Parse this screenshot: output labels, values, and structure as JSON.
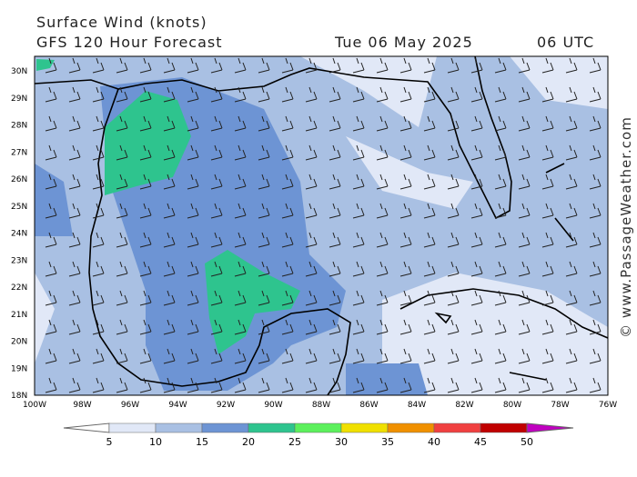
{
  "header": {
    "title": "Surface Wind (knots)",
    "model": "GFS 120 Hour Forecast",
    "date": "Tue 06 May 2025",
    "time": "06 UTC"
  },
  "map": {
    "lat_labels": [
      "30N",
      "29N",
      "28N",
      "27N",
      "26N",
      "25N",
      "24N",
      "23N",
      "22N",
      "21N",
      "20N",
      "19N",
      "18N"
    ],
    "lon_labels": [
      "100W",
      "98W",
      "96W",
      "94W",
      "92W",
      "90W",
      "88W",
      "86W",
      "84W",
      "82W",
      "80W",
      "78W",
      "76W"
    ]
  },
  "legend": {
    "labels": [
      "5",
      "10",
      "15",
      "20",
      "25",
      "30",
      "35",
      "40",
      "45",
      "50"
    ],
    "colors": [
      "#ffffff",
      "#e1e8f7",
      "#a9c0e3",
      "#6d94d4",
      "#2ec48e",
      "#5cf05c",
      "#f0e000",
      "#f09000",
      "#f04040",
      "#c00000",
      "#c000c0"
    ]
  },
  "credit": "© www.PassageWeather.com"
}
